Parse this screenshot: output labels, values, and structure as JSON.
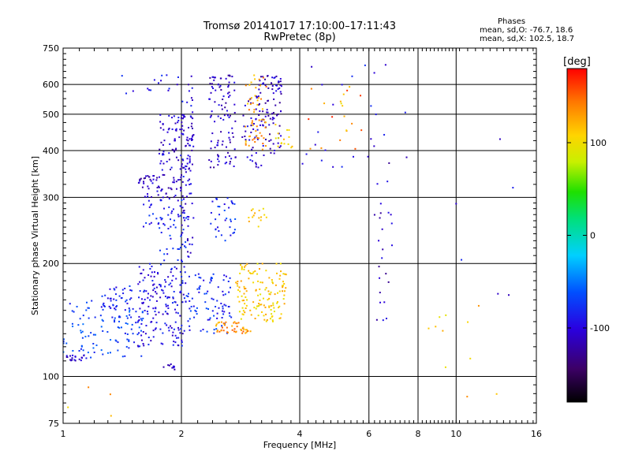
{
  "chart_data": {
    "type": "scatter",
    "title": "Tromsø 20141017 17:10:00–17:11:43",
    "subtitle": "RwPretec (8p)",
    "xlabel": "Frequency [MHz]",
    "ylabel": "Stationary phase Virtual Height [km]",
    "xscale": "log",
    "yscale": "log",
    "xlim": [
      1,
      16
    ],
    "ylim": [
      75,
      750
    ],
    "xticks": [
      1,
      2,
      4,
      6,
      8,
      10,
      16
    ],
    "yticks": [
      75,
      100,
      200,
      300,
      400,
      500,
      600,
      750
    ],
    "grid": true,
    "phase_stats": {
      "title": "Phases",
      "line_o": "mean, sd,O: -76.7, 18.6",
      "line_x": "mean, sd,X: 102.5, 18.7"
    },
    "colorbar": {
      "label": "[deg]",
      "range": [
        -180,
        180
      ],
      "ticks": [
        100,
        0,
        -100
      ]
    },
    "series": [
      {
        "description_key": "o_mode_echoes",
        "clusters": [
          {
            "x": [
              1.0,
              1.6
            ],
            "y": [
              112,
              160
            ],
            "phase": -70,
            "n": 110
          },
          {
            "x": [
              1.25,
              1.5
            ],
            "y": [
              150,
              175
            ],
            "phase": -85,
            "n": 40
          },
          {
            "x": [
              1.55,
              2.05
            ],
            "y": [
              120,
              200
            ],
            "phase": -95,
            "n": 170
          },
          {
            "x": [
              2.05,
              2.7
            ],
            "y": [
              130,
              190
            ],
            "phase": -80,
            "n": 90
          },
          {
            "x": [
              1.55,
              2.1
            ],
            "y": [
              300,
              345
            ],
            "phase": -110,
            "n": 70
          },
          {
            "x": [
              1.6,
              2.1
            ],
            "y": [
              250,
              300
            ],
            "phase": -85,
            "n": 45
          },
          {
            "x": [
              1.75,
              2.15
            ],
            "y": [
              355,
              500
            ],
            "phase": -105,
            "n": 90
          },
          {
            "x": [
              2.0,
              2.15
            ],
            "y": [
              205,
              640
            ],
            "phase": -100,
            "n": 60
          },
          {
            "x": [
              1.75,
              2.1
            ],
            "y": [
              200,
              250
            ],
            "phase": -80,
            "n": 25
          },
          {
            "x": [
              2.35,
              2.75
            ],
            "y": [
              360,
              640
            ],
            "phase": -110,
            "n": 100
          },
          {
            "x": [
              2.35,
              2.75
            ],
            "y": [
              230,
              300
            ],
            "phase": -80,
            "n": 35
          },
          {
            "x": [
              3.1,
              3.6
            ],
            "y": [
              390,
              640
            ],
            "phase": -110,
            "n": 90
          },
          {
            "x": [
              2.85,
              3.25
            ],
            "y": [
              360,
              560
            ],
            "phase": -105,
            "n": 40
          },
          {
            "x": [
              1.0,
              1.15
            ],
            "y": [
              110,
              114
            ],
            "phase": -105,
            "n": 20
          },
          {
            "x": [
              1.8,
              1.95
            ],
            "y": [
              104,
              108
            ],
            "phase": -115,
            "n": 10
          },
          {
            "x": [
              1.4,
              2.0
            ],
            "y": [
              560,
              640
            ],
            "phase": -90,
            "n": 15
          }
        ]
      },
      {
        "description_key": "x_mode_echoes",
        "clusters": [
          {
            "x": [
              2.45,
              3.0
            ],
            "y": [
              130,
              140
            ],
            "phase": 135,
            "n": 45
          },
          {
            "x": [
              2.75,
              3.7
            ],
            "y": [
              140,
              200
            ],
            "phase": 110,
            "n": 140
          },
          {
            "x": [
              2.95,
              3.3
            ],
            "y": [
              250,
              280
            ],
            "phase": 110,
            "n": 15
          },
          {
            "x": [
              2.9,
              3.3
            ],
            "y": [
              400,
              640
            ],
            "phase": 130,
            "n": 55
          },
          {
            "x": [
              3.45,
              3.85
            ],
            "y": [
              400,
              480
            ],
            "phase": 110,
            "n": 15
          }
        ]
      },
      {
        "description_key": "sparse_echoes",
        "clusters": [
          {
            "x": [
              4.0,
              7.5
            ],
            "y": [
              360,
              680
            ],
            "phase": -95,
            "n": 25
          },
          {
            "x": [
              4.2,
              5.8
            ],
            "y": [
              400,
              600
            ],
            "phase": 150,
            "n": 12
          },
          {
            "x": [
              4.5,
              5.5
            ],
            "y": [
              450,
              600
            ],
            "phase": 110,
            "n": 8
          },
          {
            "x": [
              6.2,
              6.9
            ],
            "y": [
              130,
              400
            ],
            "phase": -110,
            "n": 25
          },
          {
            "x": [
              8.5,
              9.5
            ],
            "y": [
              105,
              150
            ],
            "phase": 110,
            "n": 6
          },
          {
            "x": [
              9.0,
              14.0
            ],
            "y": [
              160,
              540
            ],
            "phase": -100,
            "n": 6
          },
          {
            "x": [
              10.0,
              13.0
            ],
            "y": [
              85,
              280
            ],
            "phase": 120,
            "n": 5
          },
          {
            "x": [
              1.0,
              1.5
            ],
            "y": [
              78,
              100
            ],
            "phase": 120,
            "n": 4
          }
        ]
      }
    ]
  }
}
